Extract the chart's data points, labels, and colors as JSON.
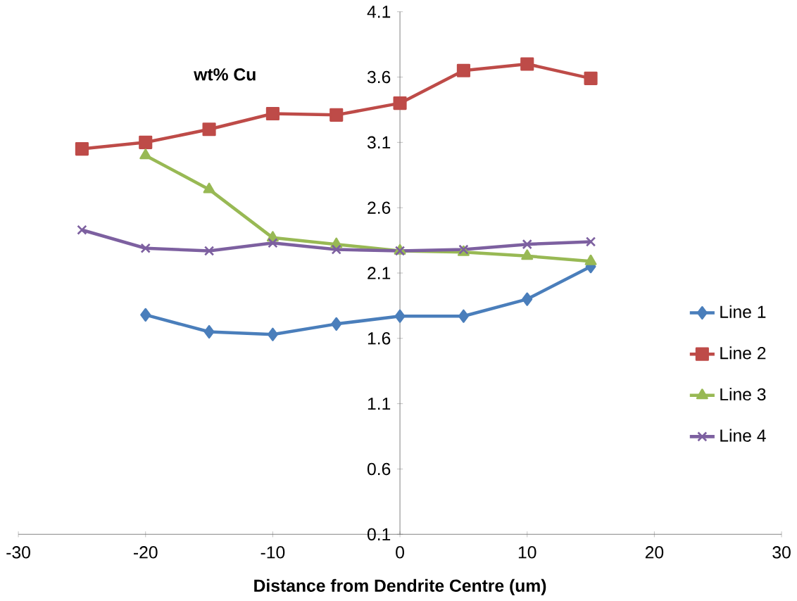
{
  "chart_data": {
    "type": "line",
    "ylabel": "wt% Cu",
    "xlabel": "Distance from Dendrite Centre (um)",
    "xlim": [
      -30,
      30
    ],
    "xticks": [
      -30,
      -20,
      -10,
      0,
      10,
      20,
      30
    ],
    "ylim": [
      0.1,
      4.1
    ],
    "yticks": [
      0.1,
      0.6,
      1.1,
      1.6,
      2.1,
      2.6,
      3.1,
      3.6,
      4.1
    ],
    "legend": "right",
    "grid": false,
    "series": [
      {
        "name": "Line 1",
        "color": "#4a7ebb",
        "marker": "diamond",
        "x": [
          -20,
          -15,
          -10,
          -5,
          0,
          5,
          10,
          15
        ],
        "values": [
          1.78,
          1.65,
          1.63,
          1.71,
          1.77,
          1.77,
          1.9,
          2.15
        ]
      },
      {
        "name": "Line 2",
        "color": "#be4b48",
        "marker": "square",
        "x": [
          -25,
          -20,
          -15,
          -10,
          -5,
          0,
          5,
          10,
          15
        ],
        "values": [
          3.05,
          3.1,
          3.2,
          3.32,
          3.31,
          3.4,
          3.65,
          3.7,
          3.59
        ]
      },
      {
        "name": "Line 3",
        "color": "#98b954",
        "marker": "triangle",
        "x": [
          -20,
          -15,
          -10,
          -5,
          0,
          5,
          10,
          15
        ],
        "values": [
          3.0,
          2.74,
          2.37,
          2.32,
          2.27,
          2.26,
          2.23,
          2.19
        ]
      },
      {
        "name": "Line 4",
        "color": "#7d60a0",
        "marker": "cross",
        "x": [
          -25,
          -20,
          -15,
          -10,
          -5,
          0,
          5,
          10,
          15
        ],
        "values": [
          2.43,
          2.29,
          2.27,
          2.33,
          2.28,
          2.27,
          2.28,
          2.32,
          2.34
        ]
      }
    ]
  }
}
